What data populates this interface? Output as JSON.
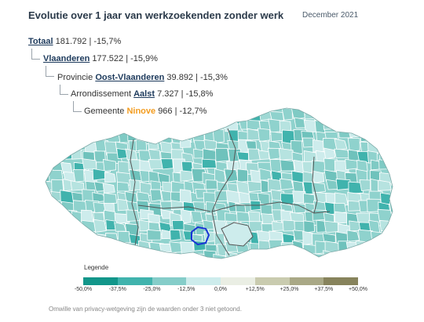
{
  "title": "Evolutie over 1 jaar van werkzoekenden zonder werk",
  "period": "December 2021",
  "breadcrumb": {
    "total": {
      "label": "Totaal",
      "value": "181.792 | -15,7%"
    },
    "region": {
      "label": "Vlaanderen",
      "value": "177.522 | -15,9%"
    },
    "province": {
      "prefix": "Provincie",
      "label": "Oost-Vlaanderen",
      "value": "39.892 | -15,3%"
    },
    "arrondissement": {
      "prefix": "Arrondissement",
      "label": "Aalst",
      "value": "7.327 | -15,8%"
    },
    "municipality": {
      "prefix": "Gemeente",
      "label": "Ninove",
      "value": "966 | -12,7%"
    }
  },
  "legend": {
    "title": "Legende",
    "ticks": [
      "-50,0%",
      "-37,5%",
      "-25,0%",
      "-12,5%",
      "0,0%",
      "+12,5%",
      "+25,0%",
      "+37,5%",
      "+50,0%"
    ],
    "colors": [
      "#12968a",
      "#40b3ad",
      "#85cdc9",
      "#cdecec",
      "#eaeee4",
      "#c9cbaf",
      "#a9a886",
      "#87835c"
    ]
  },
  "map": {
    "selected_municipality": "Ninove",
    "highlight_color": "#1a33d6",
    "base_color": "#8fd2cd",
    "border_color": "#ffffff",
    "province_border_color": "#555555"
  },
  "footnote": "Omwille van privacy-wetgeving zijn de waarden onder 3 niet getoond."
}
